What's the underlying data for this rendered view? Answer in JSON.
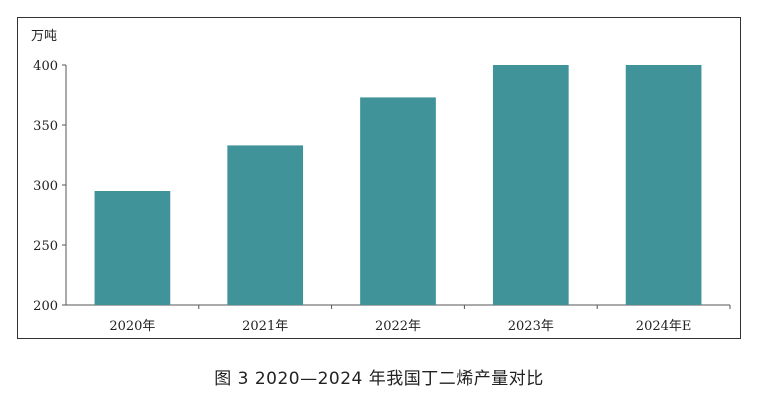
{
  "caption": "图 3 2020—2024 年我国丁二烯产量对比",
  "chart_data": {
    "type": "bar",
    "unit_label": "万吨",
    "categories": [
      "2020年",
      "2021年",
      "2022年",
      "2023年",
      "2024年E"
    ],
    "values": [
      295,
      333,
      373,
      401,
      401
    ],
    "ylim": [
      200,
      400
    ],
    "yticks": [
      200,
      250,
      300,
      350,
      400
    ],
    "bar_color": "#3f9399",
    "grid": false
  }
}
